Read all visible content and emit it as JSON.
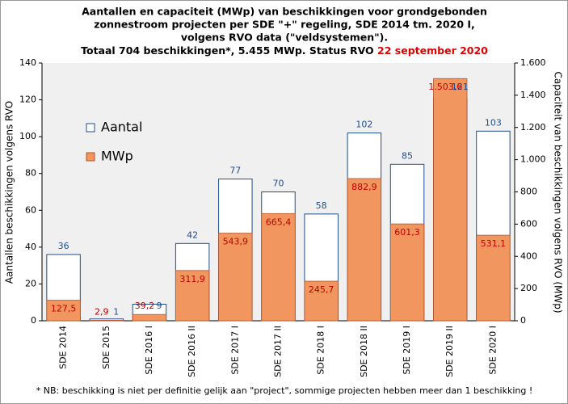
{
  "chart_data": {
    "type": "bar",
    "title": [
      "Aantallen en capaciteit (MWp) van beschikkingen  voor grondgebonden",
      "zonnestroom projecten per SDE \"+\" regeling, SDE 2014 tm. 2020 I,",
      "volgens RVO data (\"veldsystemen\")."
    ],
    "title_last": [
      "Totaal 704 beschikkingen*,  5.455 MWp. Status RVO ",
      "22 september 2020"
    ],
    "ylabel": "Aantallen beschikkingen volgens RVO",
    "y2label": "Capaciteit van beschikkingen volgens RVO (MWp)",
    "footnote": "* NB: beschikking is niet per definitie gelijk aan \"project\", sommige projecten hebben meer dan 1 beschikking !",
    "categories": [
      "SDE 2014",
      "SDE 2015",
      "SDE 2016 I",
      "SDE 2016 II",
      "SDE 2017 I",
      "SDE 2017 II",
      "SDE 2018 I",
      "SDE 2018 II",
      "SDE 2019 I",
      "SDE 2019 II",
      "SDE 2020 I"
    ],
    "series": [
      {
        "name": "Aantal",
        "color": "#1f4e8c",
        "values": [
          36,
          1,
          9,
          42,
          77,
          70,
          58,
          102,
          85,
          121,
          103
        ]
      },
      {
        "name": "MWp",
        "color": "#f0965e",
        "axis": "y2",
        "values": [
          127.5,
          2.9,
          39.2,
          311.9,
          543.9,
          665.4,
          245.7,
          882.9,
          601.3,
          1503.6,
          531.1
        ],
        "value_labels": [
          "127,5",
          "2,9",
          "39,2",
          "311,9",
          "543,9",
          "665,4",
          "245,7",
          "882,9",
          "601,3",
          "1.503,6",
          "531,1"
        ]
      }
    ],
    "ylim": [
      0,
      140
    ],
    "yticks": [
      0,
      20,
      40,
      60,
      80,
      100,
      120,
      140
    ],
    "y2lim": [
      0,
      1600
    ],
    "y2ticks": [
      0,
      200,
      400,
      600,
      800,
      {
        "value": 1000,
        "label": "1.000"
      },
      {
        "value": 1200,
        "label": "1.200"
      },
      {
        "value": 1400,
        "label": "1.400"
      },
      {
        "value": 1600,
        "label": "1.600"
      }
    ],
    "legend": "upper left",
    "grid": false
  }
}
